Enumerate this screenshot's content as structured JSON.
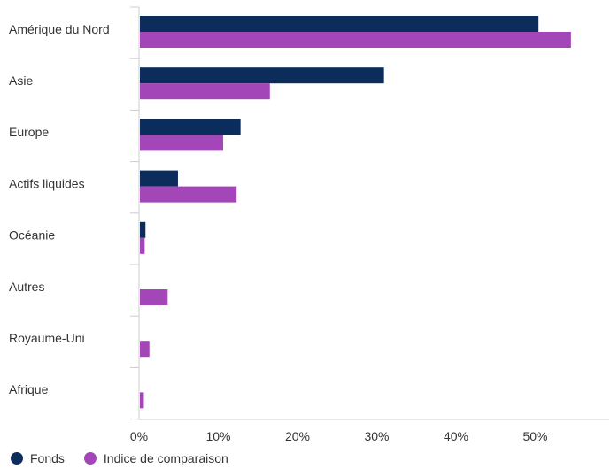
{
  "chart_data": {
    "type": "bar",
    "orientation": "horizontal",
    "categories": [
      "Amérique du Nord",
      "Asie",
      "Europe",
      "Actifs liquides",
      "Océanie",
      "Autres",
      "Royaume-Uni",
      "Afrique"
    ],
    "series": [
      {
        "name": "Fonds",
        "color": "#0c2d5c",
        "values": [
          50.3,
          30.8,
          12.7,
          4.8,
          0.7,
          0.0,
          0.0,
          0.0
        ]
      },
      {
        "name": "Indice de comparaison",
        "color": "#a347b8",
        "values": [
          54.4,
          16.4,
          10.5,
          12.2,
          0.6,
          3.5,
          1.2,
          0.5
        ]
      }
    ],
    "x_ticks": [
      "0%",
      "10%",
      "20%",
      "30%",
      "40%",
      "50%"
    ],
    "xlim": [
      0,
      59
    ],
    "grid": false,
    "legend_position": "bottom-left"
  }
}
